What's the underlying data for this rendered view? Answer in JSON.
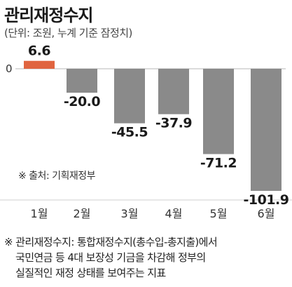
{
  "title": "관리재정수지",
  "subtitle": "(단위: 조원, 누계 기준 잠정치)",
  "source": "※ 출처: 기획재정부",
  "footnote": {
    "line1": "※ 관리재정수지: 통합재정수지(총수입-총지출)에서",
    "line2": "국민연금 등 4대 보장성 기금을 차감해 정부의",
    "line3": "실질적인 재정 상태를 보여주는 지표"
  },
  "colors": {
    "positive": "#e0643f",
    "negative": "#8a8a8a",
    "axis": "#cfcfcf"
  },
  "chart_data": {
    "type": "bar",
    "categories": [
      "1월",
      "2월",
      "3월",
      "4월",
      "5월",
      "6월"
    ],
    "values": [
      6.6,
      -20.0,
      -45.5,
      -37.9,
      -71.2,
      -101.9
    ],
    "value_labels": [
      "6.6",
      "-20.0",
      "-45.5",
      "-37.9",
      "-71.2",
      "-101.9"
    ],
    "zero_label": "0",
    "title": "관리재정수지",
    "subtitle": "(단위: 조원, 누계 기준 잠정치)",
    "xlabel": "",
    "ylabel": "",
    "grid": false,
    "legend": "none"
  }
}
